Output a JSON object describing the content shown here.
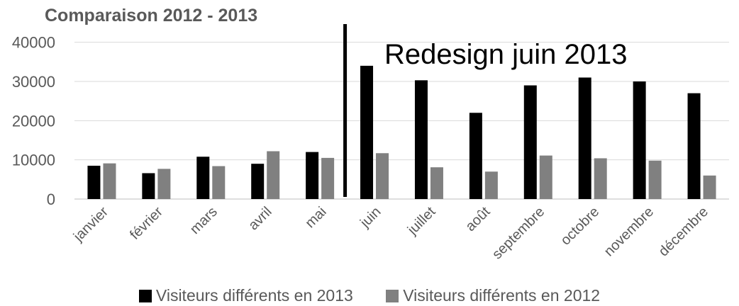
{
  "chart_data": {
    "type": "bar",
    "title": "Comparaison 2012 - 2013",
    "categories": [
      "janvier",
      "février",
      "mars",
      "avril",
      "mai",
      "juin",
      "juillet",
      "août",
      "septembre",
      "octobre",
      "novembre",
      "décembre"
    ],
    "series": [
      {
        "name": "Visiteurs différents en 2013",
        "color": "#000000",
        "values": [
          8500,
          6600,
          10800,
          9000,
          12000,
          34000,
          30300,
          22000,
          29000,
          31000,
          30000,
          27000
        ]
      },
      {
        "name": "Visiteurs différents en 2012",
        "color": "#808080",
        "values": [
          9100,
          7700,
          8400,
          12200,
          10500,
          11700,
          8100,
          7000,
          11100,
          10400,
          9800,
          6000
        ]
      }
    ],
    "ylim": [
      0,
      45000
    ],
    "yticks": [
      0,
      10000,
      20000,
      30000,
      40000
    ],
    "grid": true,
    "legend_position": "bottom",
    "annotation": {
      "text": "Redesign juin 2013",
      "category": "juin"
    }
  }
}
